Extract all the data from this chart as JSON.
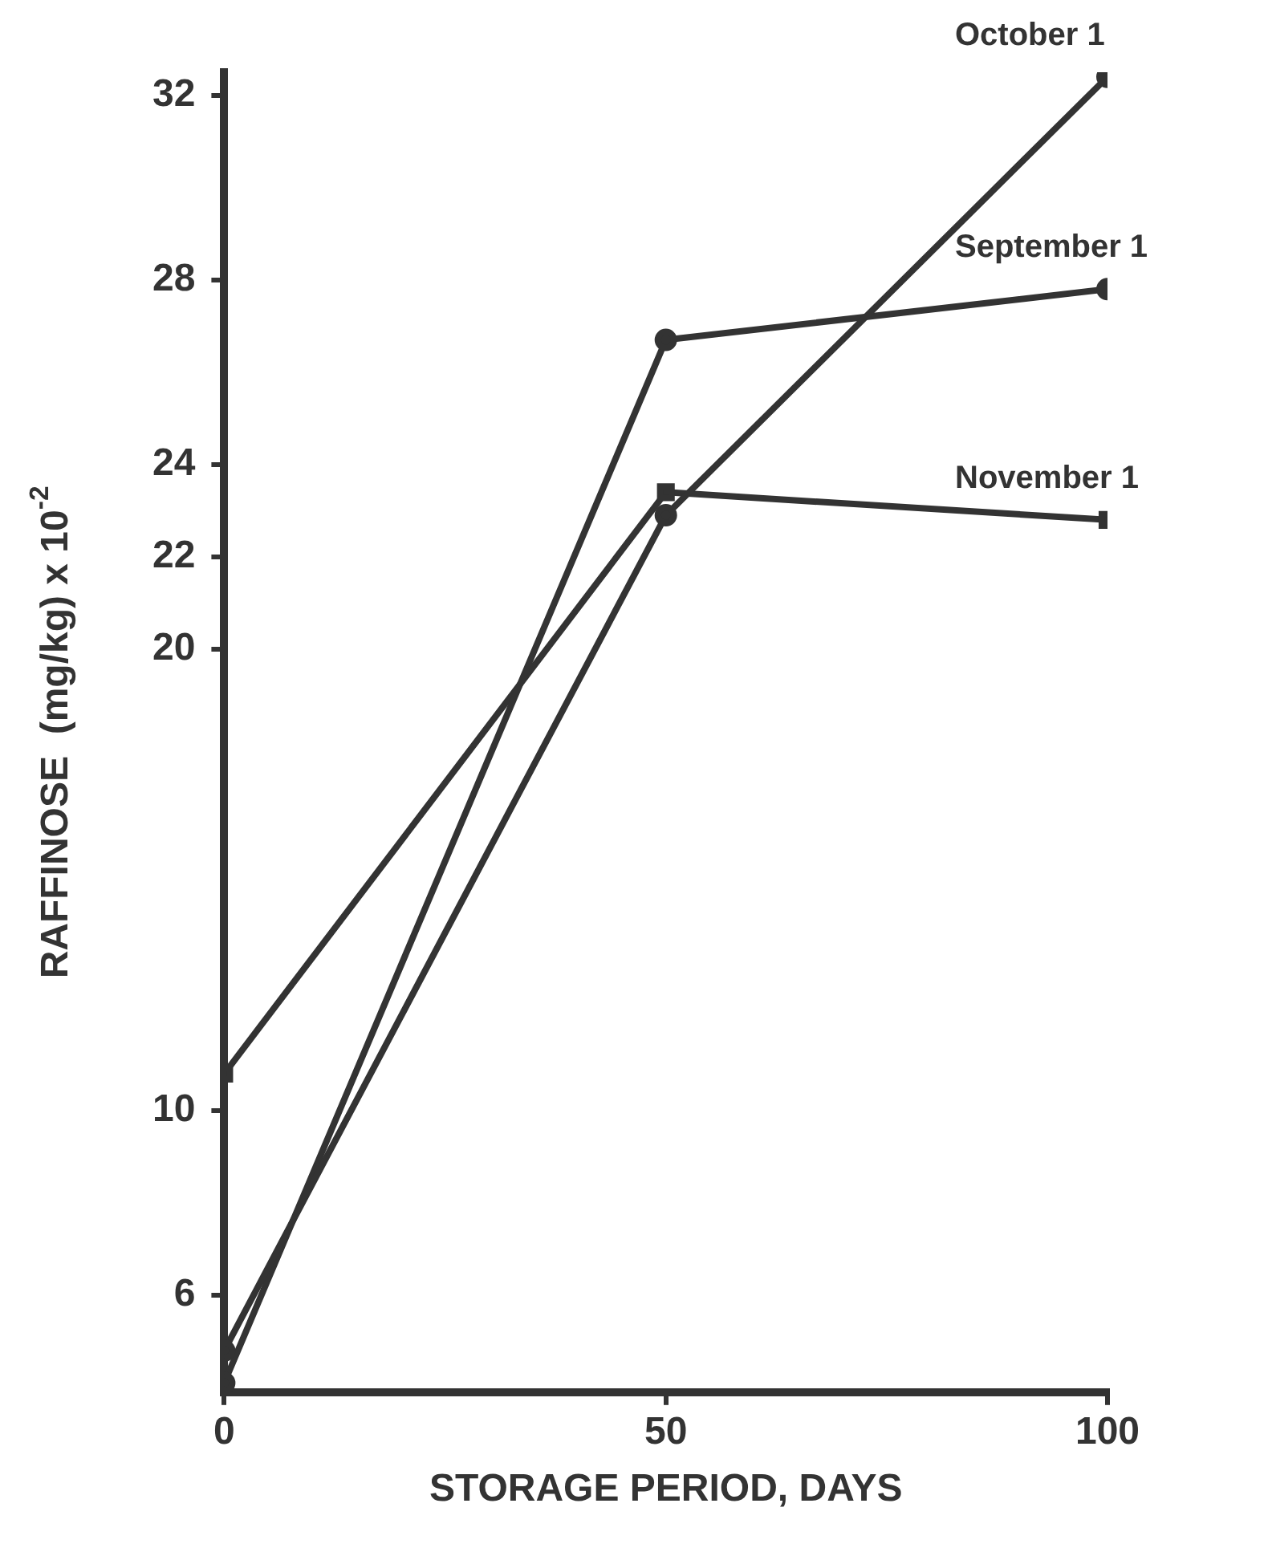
{
  "chart_data": {
    "type": "line",
    "xlabel": "STORAGE PERIOD, DAYS",
    "ylabel": "RAFFINOSE  (mg/kg) x 10$^{-2}$",
    "x": [
      0,
      50,
      100
    ],
    "xlim": [
      0,
      100
    ],
    "xticks": [
      0,
      50,
      100
    ],
    "ylim": [
      3.9,
      32.5
    ],
    "yticks": [
      6,
      10,
      20,
      22,
      24,
      28,
      32
    ],
    "grid": false,
    "legend": false,
    "line_style": "solid",
    "series": [
      {
        "name": "October 1",
        "color": "#333333",
        "marker": "circle",
        "values": [
          4.8,
          22.9,
          32.4
        ]
      },
      {
        "name": "September 1",
        "color": "#333333",
        "marker": "circle",
        "values": [
          4.1,
          26.7,
          27.8
        ]
      },
      {
        "name": "November 1",
        "color": "#333333",
        "marker": "square",
        "values": [
          10.8,
          23.4,
          22.8
        ]
      }
    ]
  }
}
